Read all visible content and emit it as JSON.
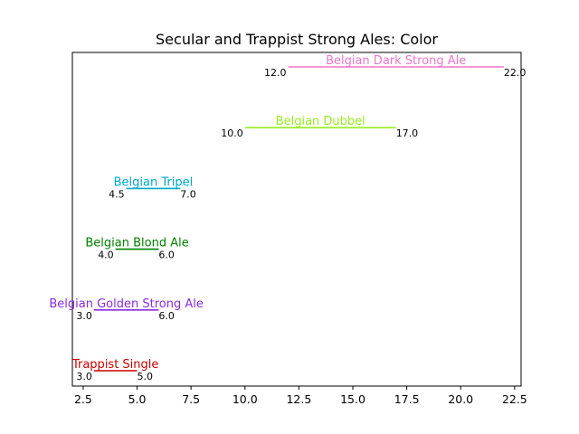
{
  "chart_data": {
    "type": "range",
    "title": "Secular and Trappist Strong Ales: Color",
    "xlabel": "",
    "ylabel": "",
    "xlim": [
      2.0,
      22.8
    ],
    "xticks": [
      2.5,
      5.0,
      7.5,
      10.0,
      12.5,
      15.0,
      17.5,
      20.0,
      22.5
    ],
    "xtick_labels": [
      "2.5",
      "5.0",
      "7.5",
      "10.0",
      "12.5",
      "15.0",
      "17.5",
      "20.0",
      "22.5"
    ],
    "grid": false,
    "legend": "none",
    "series": [
      {
        "name": "Trappist Single",
        "min": 3.0,
        "max": 5.0,
        "min_label": "3.0",
        "max_label": "5.0",
        "color": "#cc0000"
      },
      {
        "name": "Belgian Golden Strong Ale",
        "min": 3.0,
        "max": 6.0,
        "min_label": "3.0",
        "max_label": "6.0",
        "color": "#8a2be2"
      },
      {
        "name": "Belgian Blond Ale",
        "min": 4.0,
        "max": 6.0,
        "min_label": "4.0",
        "max_label": "6.0",
        "color": "#008000"
      },
      {
        "name": "Belgian Tripel",
        "min": 4.5,
        "max": 7.0,
        "min_label": "4.5",
        "max_label": "7.0",
        "color": "#00aacc"
      },
      {
        "name": "Belgian Dubbel",
        "min": 10.0,
        "max": 17.0,
        "min_label": "10.0",
        "max_label": "17.0",
        "color": "#99ee22"
      },
      {
        "name": "Belgian Dark Strong Ale",
        "min": 12.0,
        "max": 22.0,
        "min_label": "12.0",
        "max_label": "22.0",
        "color": "#ee77cc"
      }
    ]
  }
}
